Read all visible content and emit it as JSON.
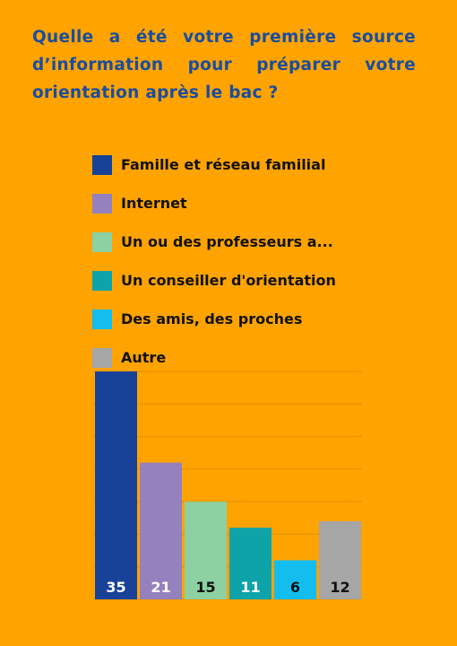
{
  "title": "Quelle a été votre première source d’information pour préparer votre orientation après le bac ?",
  "colors": {
    "background": "#FFA300",
    "title": "#1A4D9E",
    "grid": "#E08F00",
    "value_label": "#FFFFFF",
    "value_label_dark": "#111111"
  },
  "chart_data": {
    "type": "bar",
    "categories": [
      "Famille et réseau familial",
      "Internet",
      "Un ou des professeurs a...",
      "Un conseiller d'orientation",
      "Des amis, des proches",
      "Autre"
    ],
    "values": [
      35,
      21,
      15,
      11,
      6,
      12
    ],
    "value_labels": [
      "35",
      "21",
      "15",
      "11",
      "6",
      "12"
    ],
    "bar_colors": [
      "#174298",
      "#9581BD",
      "#8DD0A1",
      "#0EA3A9",
      "#13BEEE",
      "#A6A6A6"
    ],
    "label_colors": [
      "#FFFFFF",
      "#FFFFFF",
      "#111111",
      "#FFFFFF",
      "#111111",
      "#111111"
    ],
    "ylim": [
      0,
      35
    ],
    "grid": true,
    "legend_position": "top",
    "xlabel": "",
    "ylabel": ""
  }
}
